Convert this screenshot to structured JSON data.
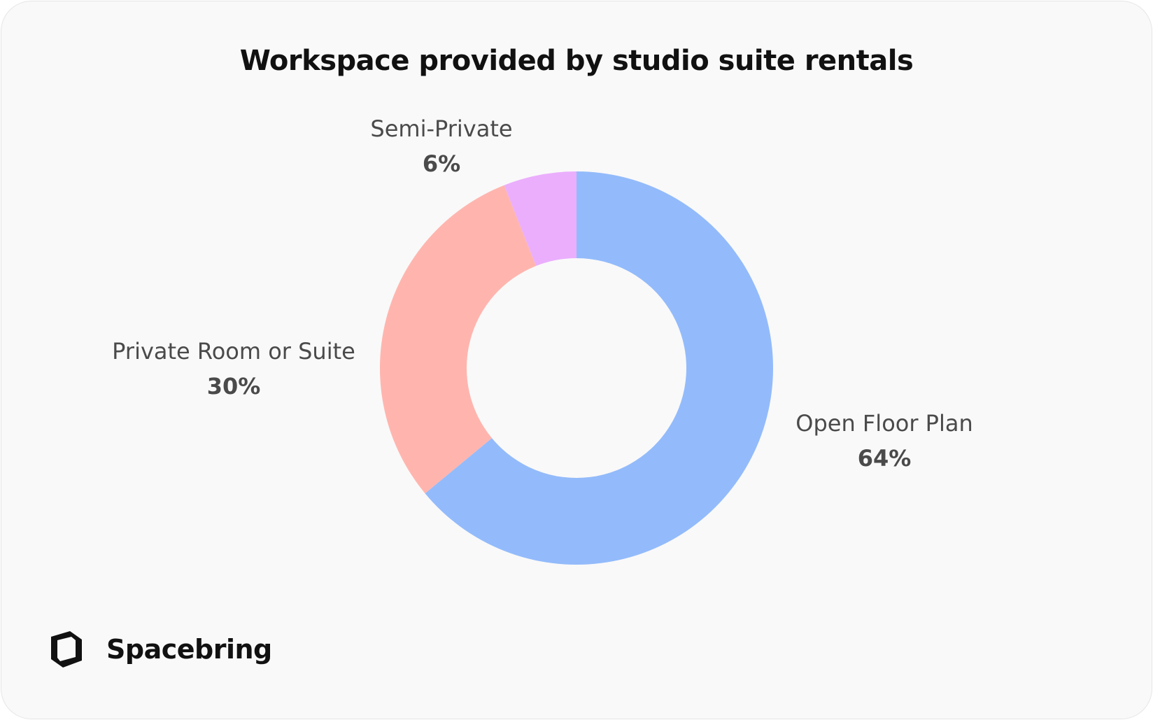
{
  "chart_data": {
    "type": "pie",
    "variant": "donut",
    "title": "Workspace provided by studio suite rentals",
    "categories": [
      "Open Floor Plan",
      "Private Room or Suite",
      "Semi-Private"
    ],
    "values": [
      64,
      30,
      6
    ],
    "value_labels": [
      "64%",
      "30%",
      "6%"
    ],
    "colors": [
      "#93bbfb",
      "#ffb5ae",
      "#ebaefd"
    ],
    "start": "top",
    "direction": "clockwise"
  },
  "brand": {
    "name": "Spacebring",
    "logo_icon": "spacebring-cube-logo"
  }
}
